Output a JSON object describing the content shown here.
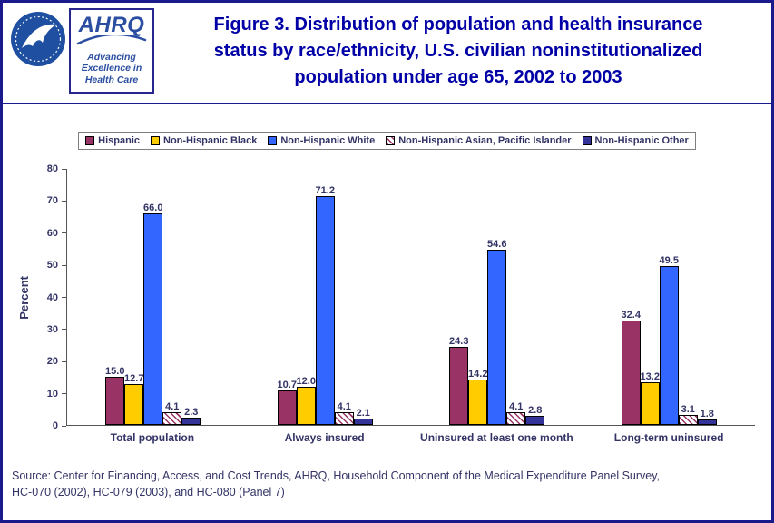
{
  "header": {
    "hhs_logo": "HHS seal",
    "ahrq": {
      "acronym": "AHRQ",
      "tagline_line1": "Advancing",
      "tagline_line2": "Excellence in",
      "tagline_line3": "Health Care"
    },
    "title_line1": "Figure 3. Distribution of population and health insurance",
    "title_line2": "status by race/ethnicity, U.S. civilian noninstitutionalized",
    "title_line3": "population under age 65, 2002 to 2003"
  },
  "chart_data": {
    "type": "bar",
    "title": "Figure 3. Distribution of population and health insurance status by race/ethnicity, U.S. civilian noninstitutionalized population under age 65, 2002 to 2003",
    "categories": [
      "Total population",
      "Always insured",
      "Uninsured at least one month",
      "Long-term uninsured"
    ],
    "series": [
      {
        "name": "Hispanic",
        "color": "#993366",
        "values": [
          15.0,
          10.7,
          24.3,
          32.4
        ]
      },
      {
        "name": "Non-Hispanic Black",
        "color": "#FFCC00",
        "values": [
          12.7,
          12.0,
          14.2,
          13.2
        ]
      },
      {
        "name": "Non-Hispanic White",
        "color": "#3366FF",
        "values": [
          66.0,
          71.2,
          54.6,
          49.5
        ]
      },
      {
        "name": "Non-Hispanic Asian, Pacific Islander",
        "color": "#993366",
        "pattern": "diagonal-stripes",
        "values": [
          4.1,
          4.1,
          4.1,
          3.1
        ]
      },
      {
        "name": "Non-Hispanic Other",
        "color": "#333399",
        "values": [
          2.3,
          2.1,
          2.8,
          1.8
        ]
      }
    ],
    "ylabel": "Percent",
    "ylim": [
      0,
      80
    ],
    "yticks": [
      0,
      10,
      20,
      30,
      40,
      50,
      60,
      70,
      80
    ],
    "legend_position": "top",
    "grid": false,
    "value_labels": true
  },
  "source_line1": "Source: Center for Financing, Access, and Cost Trends, AHRQ, Household Component of the Medical Expenditure Panel Survey,",
  "source_line2": "HC-070 (2002), HC-079 (2003), and HC-080 (Panel 7)",
  "colors": {
    "page_border": "#1A1A8C",
    "title_text": "#0000A6",
    "chart_text": "#333366"
  }
}
